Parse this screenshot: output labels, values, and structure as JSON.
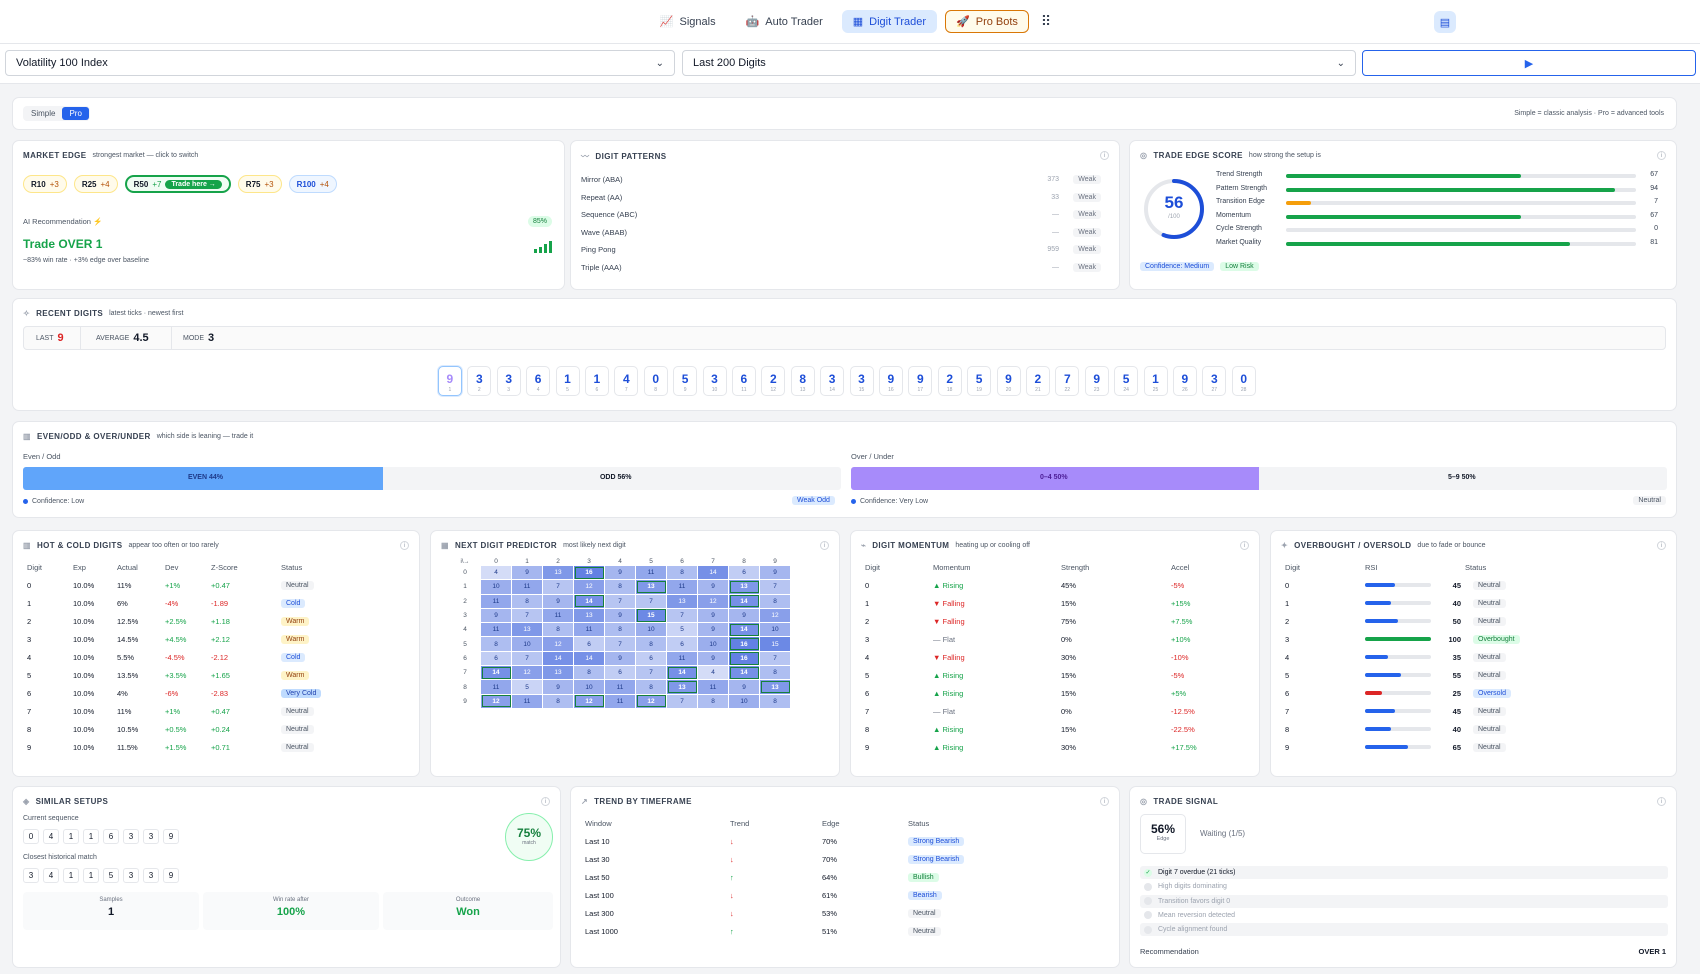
{
  "nav": {
    "items": [
      {
        "label": "Signals",
        "icon": "chart-line-icon"
      },
      {
        "label": "Auto Trader",
        "icon": "robot-icon"
      },
      {
        "label": "Digit Trader",
        "icon": "calculator-icon"
      },
      {
        "label": "Pro Bots",
        "icon": "rocket-icon"
      }
    ]
  },
  "controls": {
    "market": "Volatility 100 Index",
    "window": "Last 200 Digits"
  },
  "mode": {
    "simple": "Simple",
    "pro": "Pro",
    "hint": "Simple = classic analysis · Pro = advanced tools"
  },
  "market_edge": {
    "title": "MARKET EDGE",
    "subtitle": "strongest market — click to switch",
    "chips": [
      {
        "name": "R10",
        "delta": "+3"
      },
      {
        "name": "R25",
        "delta": "+4"
      },
      {
        "name": "R50",
        "delta": "+7"
      },
      {
        "name": "R75",
        "delta": "+3"
      },
      {
        "name": "R100",
        "delta": "+4"
      }
    ],
    "trade_here": "Trade here →",
    "ai_label": "AI Recommendation",
    "ai_conf": "85%",
    "rec": "Trade OVER 1",
    "rec_sub": "~83% win rate · +3% edge over baseline"
  },
  "patterns": {
    "title": "DIGIT PATTERNS",
    "rows": [
      {
        "name": "Mirror (ABA)",
        "value": "373",
        "status": "Weak"
      },
      {
        "name": "Repeat (AA)",
        "value": "33",
        "status": "Weak"
      },
      {
        "name": "Sequence (ABC)",
        "value": "—",
        "status": "Weak"
      },
      {
        "name": "Wave (ABAB)",
        "value": "—",
        "status": "Weak"
      },
      {
        "name": "Ping Pong",
        "value": "959",
        "status": "Weak"
      },
      {
        "name": "Triple (AAA)",
        "value": "—",
        "status": "Weak"
      }
    ]
  },
  "trade_edge": {
    "title": "TRADE EDGE SCORE",
    "subtitle": "how strong the setup is",
    "score": "56",
    "score_max": "/100",
    "score_value": 56,
    "metrics": [
      {
        "name": "Trend Strength",
        "value": 67,
        "label": "67",
        "color": "#16a34a"
      },
      {
        "name": "Pattern Strength",
        "value": 94,
        "label": "94",
        "color": "#16a34a"
      },
      {
        "name": "Transition Edge",
        "value": 7,
        "label": "7",
        "color": "#f59e0b"
      },
      {
        "name": "Momentum",
        "value": 67,
        "label": "67",
        "color": "#16a34a"
      },
      {
        "name": "Cycle Strength",
        "value": 0,
        "label": "0",
        "color": "#16a34a"
      },
      {
        "name": "Market Quality",
        "value": 81,
        "label": "81",
        "color": "#16a34a"
      }
    ],
    "confidence": "Confidence: Medium",
    "risk": "Low Risk"
  },
  "recent": {
    "title": "RECENT DIGITS",
    "subtitle": "latest ticks · newest first",
    "last_label": "LAST",
    "last": "9",
    "avg_label": "AVERAGE",
    "avg": "4.5",
    "mode_label": "MODE",
    "mode": "3",
    "digits": [
      {
        "v": "9",
        "i": "1"
      },
      {
        "v": "3",
        "i": "2"
      },
      {
        "v": "3",
        "i": "3"
      },
      {
        "v": "6",
        "i": "4"
      },
      {
        "v": "1",
        "i": "5"
      },
      {
        "v": "1",
        "i": "6"
      },
      {
        "v": "4",
        "i": "7"
      },
      {
        "v": "0",
        "i": "8"
      },
      {
        "v": "5",
        "i": "9"
      },
      {
        "v": "3",
        "i": "10"
      },
      {
        "v": "6",
        "i": "11"
      },
      {
        "v": "2",
        "i": "12"
      },
      {
        "v": "8",
        "i": "13"
      },
      {
        "v": "3",
        "i": "14"
      },
      {
        "v": "3",
        "i": "15"
      },
      {
        "v": "9",
        "i": "16"
      },
      {
        "v": "9",
        "i": "17"
      },
      {
        "v": "2",
        "i": "18"
      },
      {
        "v": "5",
        "i": "19"
      },
      {
        "v": "9",
        "i": "20"
      },
      {
        "v": "2",
        "i": "21"
      },
      {
        "v": "7",
        "i": "22"
      },
      {
        "v": "9",
        "i": "23"
      },
      {
        "v": "5",
        "i": "24"
      },
      {
        "v": "1",
        "i": "25"
      },
      {
        "v": "9",
        "i": "26"
      },
      {
        "v": "3",
        "i": "27"
      },
      {
        "v": "0",
        "i": "28"
      }
    ]
  },
  "eo": {
    "title": "EVEN/ODD & OVER/UNDER",
    "subtitle": "which side is leaning — trade it",
    "eo_label": "Even / Odd",
    "even": "EVEN 44%",
    "odd": "ODD 56%",
    "even_pct": 44,
    "eo_conf": "Confidence: Low",
    "eo_badge": "Weak Odd",
    "ou_label": "Over / Under",
    "under": "0–4 50%",
    "over": "5–9 50%",
    "under_pct": 50,
    "ou_conf": "Confidence: Very Low",
    "ou_badge": "Neutral"
  },
  "hot": {
    "title": "HOT & COLD DIGITS",
    "subtitle": "appear too often or too rarely",
    "headers": [
      "Digit",
      "Exp",
      "Actual",
      "Dev",
      "Z-Score",
      "Status"
    ],
    "rows": [
      {
        "d": "0",
        "exp": "10.0%",
        "act": "11%",
        "dev": "+1%",
        "z": "+0.47",
        "s": "Neutral",
        "c": "p-neutral"
      },
      {
        "d": "1",
        "exp": "10.0%",
        "act": "6%",
        "dev": "-4%",
        "z": "-1.89",
        "s": "Cold",
        "c": "p-cold"
      },
      {
        "d": "2",
        "exp": "10.0%",
        "act": "12.5%",
        "dev": "+2.5%",
        "z": "+1.18",
        "s": "Warm",
        "c": "p-warm"
      },
      {
        "d": "3",
        "exp": "10.0%",
        "act": "14.5%",
        "dev": "+4.5%",
        "z": "+2.12",
        "s": "Warm",
        "c": "p-warm"
      },
      {
        "d": "4",
        "exp": "10.0%",
        "act": "5.5%",
        "dev": "-4.5%",
        "z": "-2.12",
        "s": "Cold",
        "c": "p-cold"
      },
      {
        "d": "5",
        "exp": "10.0%",
        "act": "13.5%",
        "dev": "+3.5%",
        "z": "+1.65",
        "s": "Warm",
        "c": "p-warm"
      },
      {
        "d": "6",
        "exp": "10.0%",
        "act": "4%",
        "dev": "-6%",
        "z": "-2.83",
        "s": "Very Cold",
        "c": "p-vcold"
      },
      {
        "d": "7",
        "exp": "10.0%",
        "act": "11%",
        "dev": "+1%",
        "z": "+0.47",
        "s": "Neutral",
        "c": "p-neutral"
      },
      {
        "d": "8",
        "exp": "10.0%",
        "act": "10.5%",
        "dev": "+0.5%",
        "z": "+0.24",
        "s": "Neutral",
        "c": "p-neutral"
      },
      {
        "d": "9",
        "exp": "10.0%",
        "act": "11.5%",
        "dev": "+1.5%",
        "z": "+0.71",
        "s": "Neutral",
        "c": "p-neutral"
      }
    ]
  },
  "predictor": {
    "title": "NEXT DIGIT PREDICTOR",
    "subtitle": "most likely next digit",
    "corner": "i\\→",
    "cols": [
      "0",
      "1",
      "2",
      "3",
      "4",
      "5",
      "6",
      "7",
      "8",
      "9"
    ],
    "matrix": [
      [
        4,
        9,
        13,
        16,
        9,
        11,
        8,
        14,
        6,
        9
      ],
      [
        10,
        11,
        7,
        12,
        8,
        13,
        11,
        9,
        13,
        7
      ],
      [
        11,
        8,
        9,
        14,
        7,
        7,
        13,
        12,
        14,
        8
      ],
      [
        9,
        7,
        11,
        13,
        9,
        15,
        7,
        9,
        9,
        12
      ],
      [
        11,
        13,
        8,
        11,
        8,
        10,
        5,
        9,
        14,
        10
      ],
      [
        8,
        10,
        12,
        6,
        7,
        8,
        6,
        10,
        16,
        15
      ],
      [
        6,
        7,
        14,
        14,
        9,
        6,
        11,
        9,
        16,
        7
      ],
      [
        14,
        12,
        13,
        8,
        6,
        7,
        14,
        4,
        14,
        8
      ],
      [
        11,
        5,
        9,
        10,
        11,
        8,
        13,
        11,
        9,
        13
      ],
      [
        12,
        11,
        8,
        12,
        11,
        12,
        7,
        8,
        10,
        8
      ]
    ]
  },
  "momentum": {
    "title": "DIGIT MOMENTUM",
    "subtitle": "heating up or cooling off",
    "headers": [
      "Digit",
      "Momentum",
      "Strength",
      "Accel"
    ],
    "rows": [
      {
        "d": "0",
        "m": "Rising",
        "t": "up",
        "s": "45%",
        "a": "-5%"
      },
      {
        "d": "1",
        "m": "Falling",
        "t": "down",
        "s": "15%",
        "a": "+15%"
      },
      {
        "d": "2",
        "m": "Falling",
        "t": "down",
        "s": "75%",
        "a": "+7.5%"
      },
      {
        "d": "3",
        "m": "Flat",
        "t": "flat",
        "s": "0%",
        "a": "+10%"
      },
      {
        "d": "4",
        "m": "Falling",
        "t": "down",
        "s": "30%",
        "a": "-10%"
      },
      {
        "d": "5",
        "m": "Rising",
        "t": "up",
        "s": "15%",
        "a": "-5%"
      },
      {
        "d": "6",
        "m": "Rising",
        "t": "up",
        "s": "15%",
        "a": "+5%"
      },
      {
        "d": "7",
        "m": "Flat",
        "t": "flat",
        "s": "0%",
        "a": "-12.5%"
      },
      {
        "d": "8",
        "m": "Rising",
        "t": "up",
        "s": "15%",
        "a": "-22.5%"
      },
      {
        "d": "9",
        "m": "Rising",
        "t": "up",
        "s": "30%",
        "a": "+17.5%"
      }
    ]
  },
  "rsi": {
    "title": "OVERBOUGHT / OVERSOLD",
    "subtitle": "due to fade or bounce",
    "headers": [
      "Digit",
      "RSI",
      "Status"
    ],
    "rows": [
      {
        "d": "0",
        "v": 45,
        "l": "45",
        "s": "Neutral",
        "c": "p-neutral",
        "col": "#2563eb"
      },
      {
        "d": "1",
        "v": 40,
        "l": "40",
        "s": "Neutral",
        "c": "p-neutral",
        "col": "#2563eb"
      },
      {
        "d": "2",
        "v": 50,
        "l": "50",
        "s": "Neutral",
        "c": "p-neutral",
        "col": "#2563eb"
      },
      {
        "d": "3",
        "v": 100,
        "l": "100",
        "s": "Overbought",
        "c": "p-ob",
        "col": "#16a34a"
      },
      {
        "d": "4",
        "v": 35,
        "l": "35",
        "s": "Neutral",
        "c": "p-neutral",
        "col": "#2563eb"
      },
      {
        "d": "5",
        "v": 55,
        "l": "55",
        "s": "Neutral",
        "c": "p-neutral",
        "col": "#2563eb"
      },
      {
        "d": "6",
        "v": 25,
        "l": "25",
        "s": "Oversold",
        "c": "p-os",
        "col": "#dc2626"
      },
      {
        "d": "7",
        "v": 45,
        "l": "45",
        "s": "Neutral",
        "c": "p-neutral",
        "col": "#2563eb"
      },
      {
        "d": "8",
        "v": 40,
        "l": "40",
        "s": "Neutral",
        "c": "p-neutral",
        "col": "#2563eb"
      },
      {
        "d": "9",
        "v": 65,
        "l": "65",
        "s": "Neutral",
        "c": "p-neutral",
        "col": "#2563eb"
      }
    ]
  },
  "similar": {
    "title": "SIMILAR SETUPS",
    "cur_label": "Current sequence",
    "cur": [
      "0",
      "4",
      "1",
      "1",
      "6",
      "3",
      "3",
      "9"
    ],
    "hist_label": "Closest historical match",
    "hist": [
      "3",
      "4",
      "1",
      "1",
      "5",
      "3",
      "3",
      "9"
    ],
    "match": "75%",
    "match_label": "match",
    "samples_label": "Samples",
    "samples": "1",
    "win_label": "Win rate after",
    "win": "100%",
    "outcome_label": "Outcome",
    "outcome": "Won"
  },
  "trend": {
    "title": "TREND BY TIMEFRAME",
    "headers": [
      "Window",
      "Trend",
      "Edge",
      "Status"
    ],
    "rows": [
      {
        "w": "Last 10",
        "t": "↓",
        "e": "70%",
        "s": "Strong Bearish",
        "c": "p-sbear"
      },
      {
        "w": "Last 30",
        "t": "↓",
        "e": "70%",
        "s": "Strong Bearish",
        "c": "p-sbear"
      },
      {
        "w": "Last 50",
        "t": "↑",
        "e": "64%",
        "s": "Bullish",
        "c": "p-bull"
      },
      {
        "w": "Last 100",
        "t": "↓",
        "e": "61%",
        "s": "Bearish",
        "c": "p-bear"
      },
      {
        "w": "Last 300",
        "t": "↓",
        "e": "53%",
        "s": "Neutral",
        "c": "p-neutral"
      },
      {
        "w": "Last 1000",
        "t": "↑",
        "e": "51%",
        "s": "Neutral",
        "c": "p-neutral"
      }
    ]
  },
  "signal": {
    "title": "TRADE SIGNAL",
    "edge": "56%",
    "edge_label": "Edge",
    "status": "Waiting (1/5)",
    "checks": [
      {
        "text": "Digit 7 overdue (21 ticks)",
        "ok": true
      },
      {
        "text": "High digits dominating",
        "ok": false
      },
      {
        "text": "Transition favors digit 0",
        "ok": false
      },
      {
        "text": "Mean reversion detected",
        "ok": false
      },
      {
        "text": "Cycle alignment found",
        "ok": false
      }
    ],
    "rec_label": "Recommendation",
    "rec": "OVER 1"
  }
}
